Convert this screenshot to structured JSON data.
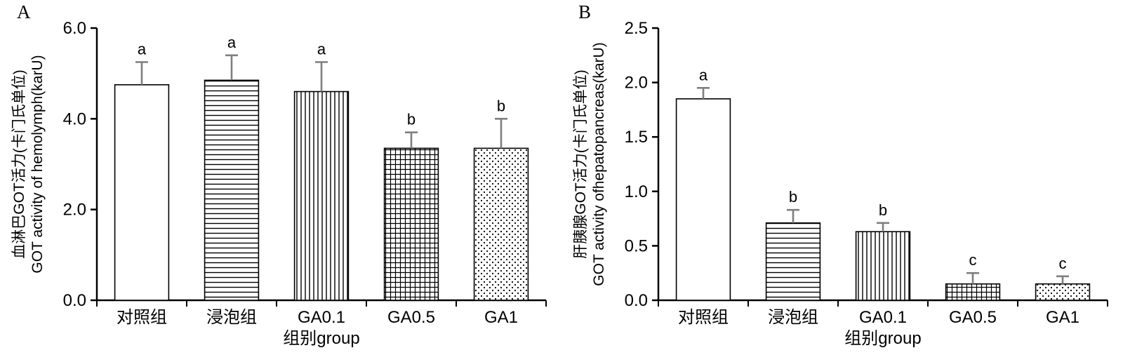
{
  "figure": {
    "background": "#ffffff"
  },
  "colors": {
    "axis": "#000000",
    "bar_stroke": "#000000",
    "bar_fill": "#ffffff",
    "error_bar": "#7f7f7f",
    "text": "#000000"
  },
  "chart_data": [
    {
      "type": "bar",
      "panel": "A",
      "categories": [
        "对照组",
        "浸泡组",
        "GA0.1",
        "GA0.5",
        "GA1"
      ],
      "values": [
        4.75,
        4.85,
        4.6,
        3.35,
        3.35
      ],
      "errors": [
        0.5,
        0.55,
        0.65,
        0.35,
        0.65
      ],
      "sig_letters": [
        "a",
        "a",
        "a",
        "b",
        "b"
      ],
      "bar_patterns": [
        "plain",
        "horizontal-lines",
        "vertical-lines",
        "grid",
        "dots"
      ],
      "ylabel_line1": "血淋巴GOT活力(卡门氏单位)",
      "ylabel_line2": "GOT activity of hemolymph(karU)",
      "xlabel": "组别group",
      "ylim": [
        0,
        6
      ],
      "ytick_labels": [
        "0.0",
        "2.0",
        "4.0",
        "6.0"
      ],
      "ytick_values": [
        0,
        2,
        4,
        6
      ],
      "grid": false,
      "legend": "none"
    },
    {
      "type": "bar",
      "panel": "B",
      "categories": [
        "对照组",
        "浸泡组",
        "GA0.1",
        "GA0.5",
        "GA1"
      ],
      "values": [
        1.85,
        0.71,
        0.63,
        0.15,
        0.15
      ],
      "errors": [
        0.1,
        0.12,
        0.08,
        0.1,
        0.07
      ],
      "sig_letters": [
        "a",
        "b",
        "b",
        "c",
        "c"
      ],
      "bar_patterns": [
        "plain",
        "horizontal-lines",
        "vertical-lines",
        "grid",
        "dots"
      ],
      "ylabel_line1": "肝胰腺GOT活力(卡门氏单位)",
      "ylabel_line2": "GOT activity ofhepatopancreas(karU)",
      "xlabel": "组别group",
      "ylim": [
        0,
        2.5
      ],
      "ytick_labels": [
        "0.0",
        "0.5",
        "1.0",
        "1.5",
        "2.0",
        "2.5"
      ],
      "ytick_values": [
        0,
        0.5,
        1,
        1.5,
        2,
        2.5
      ],
      "grid": false,
      "legend": "none"
    }
  ]
}
